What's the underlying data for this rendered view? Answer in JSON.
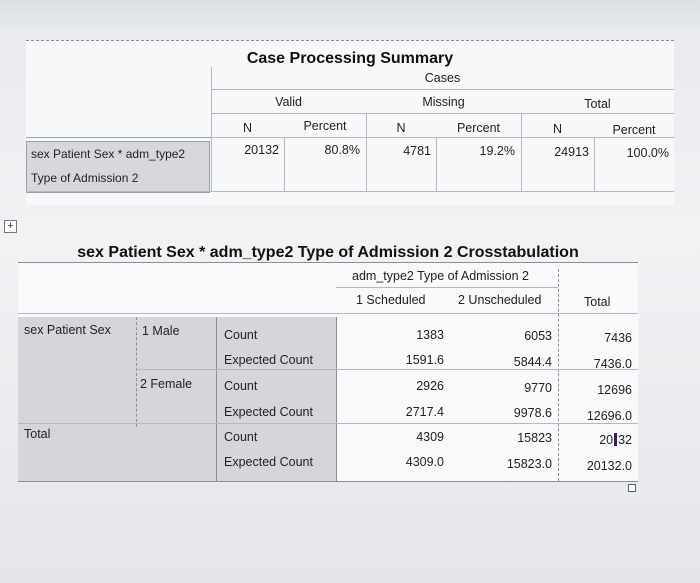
{
  "case_summary": {
    "title": "Case Processing Summary",
    "group_header": "Cases",
    "sub_headers": [
      "Valid",
      "Missing",
      "Total"
    ],
    "col_headers": [
      "N",
      "Percent",
      "N",
      "Percent",
      "N",
      "Percent"
    ],
    "row_label": "sex Patient Sex * adm_type2 Type of Admission 2",
    "row_label_line1": "sex Patient Sex * adm_type2",
    "row_label_line2": "Type of Admission 2",
    "values": [
      "20132",
      "80.8%",
      "4781",
      "19.2%",
      "24913",
      "100.0%"
    ]
  },
  "crosstab": {
    "title": "sex Patient Sex * adm_type2 Type of Admission 2 Crosstabulation",
    "col_var": "adm_type2 Type of Admission 2",
    "col_headers": [
      "1 Scheduled",
      "2 Unscheduled",
      "Total"
    ],
    "row_var": "sex Patient Sex",
    "rows": [
      {
        "group": "1 Male",
        "stat": "Count",
        "values": [
          "1383",
          "6053",
          "7436"
        ]
      },
      {
        "group": "",
        "stat": "Expected Count",
        "values": [
          "1591.6",
          "5844.4",
          "7436.0"
        ]
      },
      {
        "group": "2 Female",
        "stat": "Count",
        "values": [
          "2926",
          "9770",
          "12696"
        ]
      },
      {
        "group": "",
        "stat": "Expected Count",
        "values": [
          "2717.4",
          "9978.6",
          "12696.0"
        ]
      },
      {
        "group": "Total",
        "stat": "Count",
        "values": [
          "4309",
          "15823",
          "20132"
        ]
      },
      {
        "group": "",
        "stat": "Expected Count",
        "values": [
          "4309.0",
          "15823.0",
          "20132.0"
        ]
      }
    ],
    "total_count_display_prefix": "20",
    "total_count_display_suffix": "32"
  },
  "icons": {
    "expand": "plus-box-icon",
    "resize": "resize-handle-icon"
  },
  "colors": {
    "header_gray": "#d4d6da",
    "grid_line": "#b5b9be"
  }
}
